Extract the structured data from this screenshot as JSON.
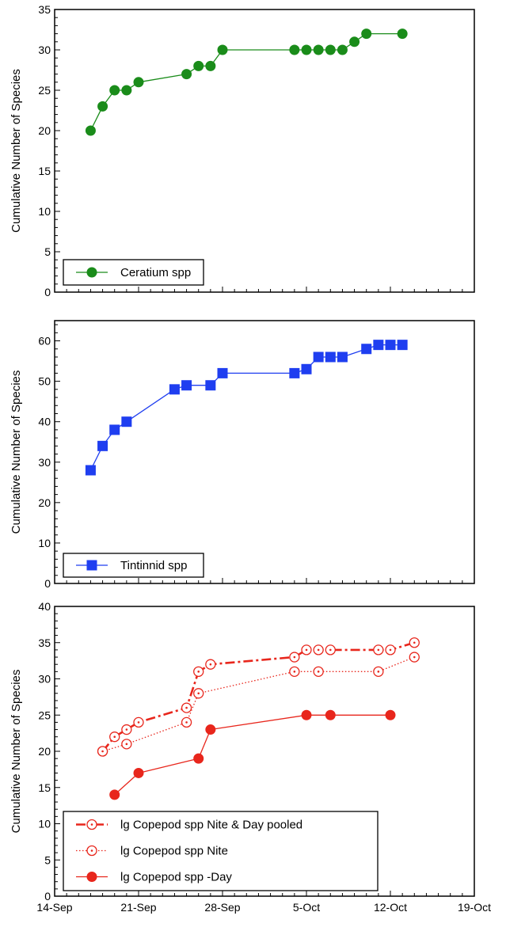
{
  "chart_data": [
    {
      "type": "line",
      "ylabel": "Cumulative Number of Species",
      "xlim": [
        "2008-09-14",
        "2008-10-19"
      ],
      "ylim": [
        0,
        35
      ],
      "yticks": [
        "0",
        "5",
        "10",
        "15",
        "20",
        "25",
        "30",
        "35"
      ],
      "grid": false,
      "legend_position": "bottom-left",
      "series": [
        {
          "name": "Ceratium spp",
          "color": "#1a8c1a",
          "marker": "filled-circle",
          "line": "solid",
          "x": [
            "2008-09-17",
            "2008-09-18",
            "2008-09-19",
            "2008-09-20",
            "2008-09-21",
            "2008-09-25",
            "2008-09-26",
            "2008-09-27",
            "2008-09-28",
            "2008-10-04",
            "2008-10-05",
            "2008-10-06",
            "2008-10-07",
            "2008-10-08",
            "2008-10-09",
            "2008-10-10",
            "2008-10-13"
          ],
          "y": [
            20,
            23,
            25,
            25,
            26,
            27,
            28,
            28,
            30,
            30,
            30,
            30,
            30,
            30,
            31,
            32,
            32
          ]
        }
      ]
    },
    {
      "type": "line",
      "ylabel": "Cumulative Number of Species",
      "xlim": [
        "2008-09-14",
        "2008-10-19"
      ],
      "ylim": [
        0,
        65
      ],
      "yticks": [
        "0",
        "10",
        "20",
        "30",
        "40",
        "50",
        "60"
      ],
      "grid": false,
      "legend_position": "bottom-left",
      "series": [
        {
          "name": "Tintinnid spp",
          "color": "#1f3ef0",
          "marker": "filled-square",
          "line": "solid",
          "x": [
            "2008-09-17",
            "2008-09-18",
            "2008-09-19",
            "2008-09-20",
            "2008-09-24",
            "2008-09-25",
            "2008-09-27",
            "2008-09-28",
            "2008-10-04",
            "2008-10-05",
            "2008-10-06",
            "2008-10-07",
            "2008-10-08",
            "2008-10-10",
            "2008-10-11",
            "2008-10-12",
            "2008-10-13"
          ],
          "y": [
            28,
            34,
            38,
            40,
            48,
            49,
            49,
            52,
            52,
            53,
            56,
            56,
            56,
            58,
            59,
            59,
            59
          ]
        }
      ]
    },
    {
      "type": "line",
      "ylabel": "Cumulative Number of Species",
      "xlim": [
        "2008-09-14",
        "2008-10-19"
      ],
      "ylim": [
        0,
        40
      ],
      "yticks": [
        "0",
        "5",
        "10",
        "15",
        "20",
        "25",
        "30",
        "35",
        "40"
      ],
      "xticks": [
        "14-Sep",
        "21-Sep",
        "28-Sep",
        "5-Oct",
        "12-Oct",
        "19-Oct"
      ],
      "grid": false,
      "legend_position": "bottom-left",
      "series": [
        {
          "name": "lg Copepod spp Nite & Day pooled",
          "color": "#e8261c",
          "marker": "dotted-circle",
          "line": "dashdot",
          "x": [
            "2008-09-18",
            "2008-09-19",
            "2008-09-20",
            "2008-09-21",
            "2008-09-25",
            "2008-09-26",
            "2008-09-27",
            "2008-10-04",
            "2008-10-05",
            "2008-10-06",
            "2008-10-07",
            "2008-10-11",
            "2008-10-12",
            "2008-10-14"
          ],
          "y": [
            20,
            22,
            23,
            24,
            26,
            31,
            32,
            33,
            34,
            34,
            34,
            34,
            34,
            35
          ]
        },
        {
          "name": "lg Copepod spp Nite",
          "color": "#e8261c",
          "marker": "dotted-circle",
          "line": "dotted",
          "x": [
            "2008-09-18",
            "2008-09-20",
            "2008-09-25",
            "2008-09-26",
            "2008-10-04",
            "2008-10-06",
            "2008-10-11",
            "2008-10-14"
          ],
          "y": [
            20,
            21,
            24,
            28,
            31,
            31,
            31,
            33
          ]
        },
        {
          "name": "lg Copepod spp -Day",
          "color": "#e8261c",
          "marker": "filled-circle",
          "line": "solid",
          "x": [
            "2008-09-19",
            "2008-09-21",
            "2008-09-26",
            "2008-09-27",
            "2008-10-05",
            "2008-10-07",
            "2008-10-12"
          ],
          "y": [
            14,
            17,
            19,
            23,
            25,
            25,
            25
          ]
        }
      ]
    }
  ]
}
